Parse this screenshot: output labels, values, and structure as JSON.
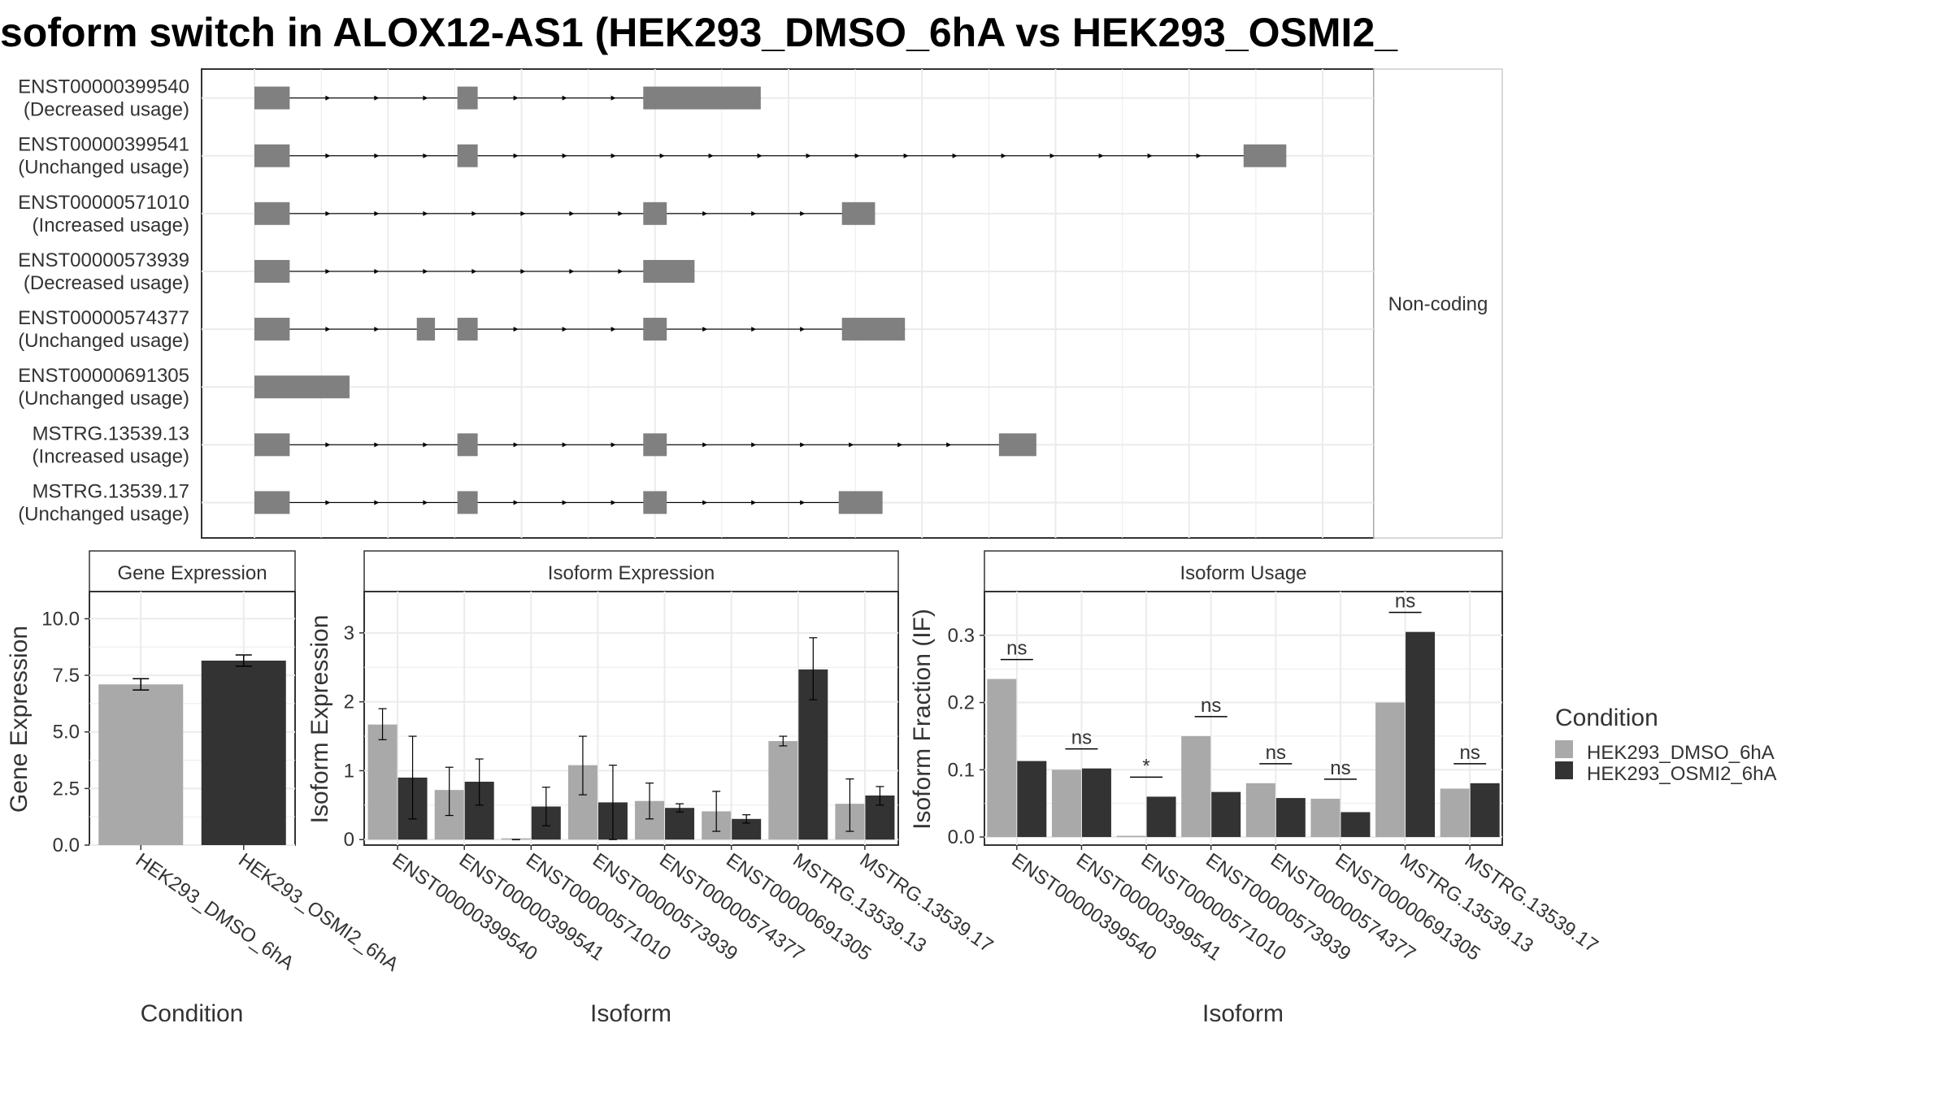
{
  "title": "soform switch in ALOX12-AS1 (HEK293_DMSO_6hA vs HEK293_OSMI2_",
  "colors": {
    "dmso": "#A9A9A9",
    "osmi2": "#333333",
    "exon": "#808080",
    "panel_border": "#333333",
    "grid": "#EBEBEB",
    "strip_fill": "#FFFFFF"
  },
  "structure": {
    "strip_label": "Non-coding",
    "transcripts": [
      {
        "id": "ENST00000399540",
        "usage": "(Decreased usage)",
        "exons": [
          [
            0,
            0.033
          ],
          [
            0.19,
            0.209
          ],
          [
            0.364,
            0.474
          ]
        ]
      },
      {
        "id": "ENST00000399541",
        "usage": "(Unchanged usage)",
        "exons": [
          [
            0,
            0.033
          ],
          [
            0.19,
            0.209
          ],
          [
            0.926,
            0.966
          ]
        ]
      },
      {
        "id": "ENST00000571010",
        "usage": "(Increased usage)",
        "exons": [
          [
            0,
            0.033
          ],
          [
            0.364,
            0.386
          ],
          [
            0.55,
            0.581
          ]
        ]
      },
      {
        "id": "ENST00000573939",
        "usage": "(Decreased usage)",
        "exons": [
          [
            0,
            0.033
          ],
          [
            0.364,
            0.412
          ]
        ]
      },
      {
        "id": "ENST00000574377",
        "usage": "(Unchanged usage)",
        "exons": [
          [
            0,
            0.033
          ],
          [
            0.152,
            0.169
          ],
          [
            0.19,
            0.209
          ],
          [
            0.364,
            0.386
          ],
          [
            0.55,
            0.609
          ]
        ]
      },
      {
        "id": "ENST00000691305",
        "usage": "(Unchanged usage)",
        "exons": [
          [
            0,
            0.089
          ]
        ]
      },
      {
        "id": "MSTRG.13539.13",
        "usage": "(Increased usage)",
        "exons": [
          [
            0,
            0.033
          ],
          [
            0.19,
            0.209
          ],
          [
            0.364,
            0.386
          ],
          [
            0.697,
            0.732
          ]
        ]
      },
      {
        "id": "MSTRG.13539.17",
        "usage": "(Unchanged usage)",
        "exons": [
          [
            0,
            0.033
          ],
          [
            0.19,
            0.209
          ],
          [
            0.364,
            0.386
          ],
          [
            0.547,
            0.588
          ]
        ]
      }
    ]
  },
  "chart_data": [
    {
      "type": "bar",
      "title": "Gene Expression",
      "xlabel": "Condition",
      "ylabel": "Gene Expression",
      "categories": [
        "HEK293_DMSO_6hA",
        "HEK293_OSMI2_6hA"
      ],
      "values": [
        7.1,
        8.15
      ],
      "errors": [
        [
          6.85,
          7.35
        ],
        [
          7.9,
          8.4
        ]
      ],
      "ylim": [
        0,
        11.2
      ],
      "yticks": [
        "0.0",
        "2.5",
        "5.0",
        "7.5",
        "10.0"
      ],
      "ytick_values": [
        0,
        2.5,
        5,
        7.5,
        10
      ]
    },
    {
      "type": "bar",
      "title": "Isoform Expression",
      "xlabel": "Isoform",
      "ylabel": "Isoform Expression",
      "categories": [
        "ENST00000399540",
        "ENST00000399541",
        "ENST00000571010",
        "ENST00000573939",
        "ENST00000574377",
        "ENST00000691305",
        "MSTRG.13539.13",
        "MSTRG.13539.17"
      ],
      "series": [
        {
          "name": "HEK293_DMSO_6hA",
          "values": [
            1.67,
            0.72,
            0.0,
            1.08,
            0.56,
            0.41,
            1.43,
            0.52
          ],
          "errors": [
            [
              1.45,
              1.9
            ],
            [
              0.35,
              1.05
            ],
            [
              0.0,
              0.0
            ],
            [
              0.65,
              1.5
            ],
            [
              0.3,
              0.82
            ],
            [
              0.12,
              0.7
            ],
            [
              1.36,
              1.5
            ],
            [
              0.12,
              0.88
            ]
          ]
        },
        {
          "name": "HEK293_OSMI2_6hA",
          "values": [
            0.9,
            0.84,
            0.48,
            0.54,
            0.46,
            0.3,
            2.47,
            0.64
          ],
          "errors": [
            [
              0.3,
              1.5
            ],
            [
              0.5,
              1.17
            ],
            [
              0.2,
              0.76
            ],
            [
              0.0,
              1.08
            ],
            [
              0.4,
              0.52
            ],
            [
              0.24,
              0.36
            ],
            [
              2.03,
              2.93
            ],
            [
              0.5,
              0.77
            ]
          ]
        }
      ],
      "ylim": [
        -0.08,
        3.6
      ],
      "yticks": [
        "0",
        "1",
        "2",
        "3"
      ],
      "ytick_values": [
        0,
        1,
        2,
        3
      ]
    },
    {
      "type": "bar",
      "title": "Isoform Usage",
      "xlabel": "Isoform",
      "ylabel": "Isoform Fraction (IF)",
      "categories": [
        "ENST00000399540",
        "ENST00000399541",
        "ENST00000571010",
        "ENST00000573939",
        "ENST00000574377",
        "ENST00000691305",
        "MSTRG.13539.13",
        "MSTRG.13539.17"
      ],
      "series": [
        {
          "name": "HEK293_DMSO_6hA",
          "values": [
            0.235,
            0.1,
            0.0,
            0.15,
            0.08,
            0.057,
            0.2,
            0.072
          ]
        },
        {
          "name": "HEK293_OSMI2_6hA",
          "values": [
            0.113,
            0.102,
            0.06,
            0.067,
            0.058,
            0.037,
            0.305,
            0.08
          ]
        }
      ],
      "significance": [
        "ns",
        "ns",
        "*",
        "ns",
        "ns",
        "ns",
        "ns",
        "ns"
      ],
      "ylim": [
        -0.012,
        0.365
      ],
      "yticks": [
        "0.0",
        "0.1",
        "0.2",
        "0.3"
      ],
      "ytick_values": [
        0,
        0.1,
        0.2,
        0.3
      ]
    }
  ],
  "legend": {
    "title": "Condition",
    "entries": [
      "HEK293_DMSO_6hA",
      "HEK293_OSMI2_6hA"
    ]
  }
}
